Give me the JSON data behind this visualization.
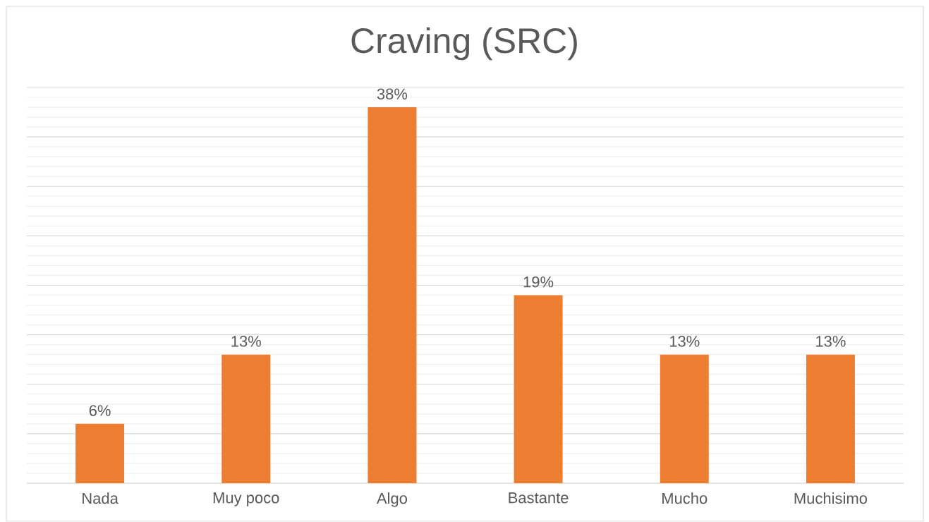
{
  "chart_data": {
    "type": "bar",
    "title": "Craving (SRC)",
    "categories": [
      "Nada",
      "Muy poco",
      "Algo",
      "Bastante",
      "Mucho",
      "Muchisimo"
    ],
    "values": [
      6,
      13,
      38,
      19,
      13,
      13
    ],
    "value_labels": [
      "6%",
      "13%",
      "38%",
      "19%",
      "13%",
      "13%"
    ],
    "color": "#ED7D31",
    "ylim": [
      0,
      40
    ],
    "yticks": [
      {
        "value": 0,
        "label": null
      },
      {
        "value": 5,
        "label": null
      },
      {
        "value": 10,
        "label": null
      },
      {
        "value": 15,
        "label": null
      },
      {
        "value": 20,
        "label": null
      },
      {
        "value": 25,
        "label": null
      },
      {
        "value": 30,
        "label": null
      },
      {
        "value": 35,
        "label": null
      },
      {
        "value": 40,
        "label": null
      }
    ],
    "tick_labels": "x",
    "grid": "y"
  }
}
